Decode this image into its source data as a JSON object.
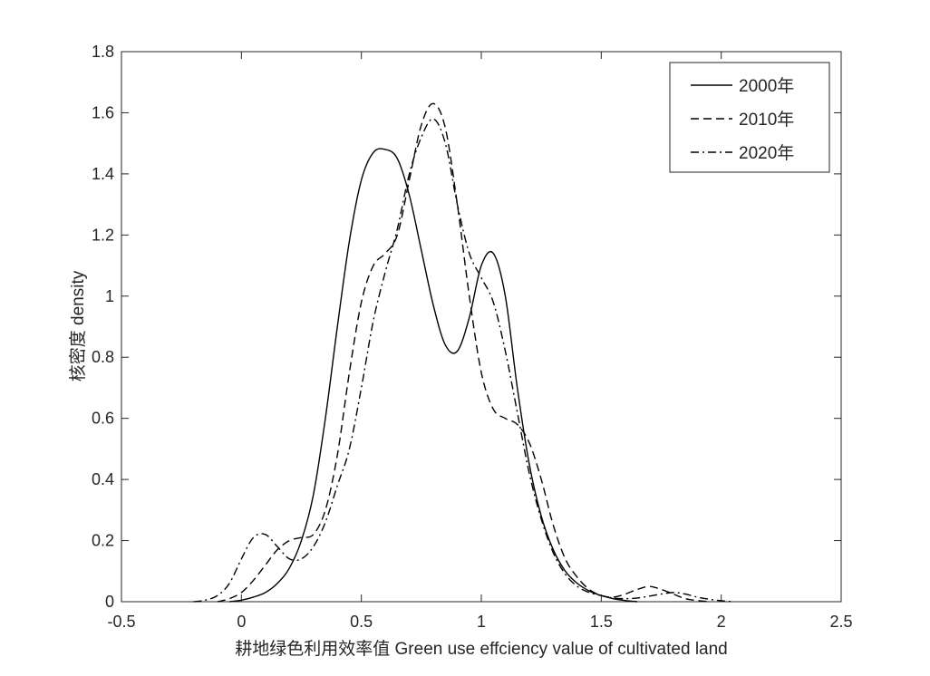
{
  "chart_data": {
    "type": "line",
    "title": "",
    "xlabel": "耕地绿色利用效率值 Green use effciency value of cultivated land",
    "ylabel": "核密度 density",
    "xlim": [
      -0.5,
      2.5
    ],
    "ylim": [
      0,
      1.8
    ],
    "xticks": [
      -0.5,
      0,
      0.5,
      1,
      1.5,
      2,
      2.5
    ],
    "yticks": [
      0,
      0.2,
      0.4,
      0.6,
      0.8,
      1,
      1.2,
      1.4,
      1.6,
      1.8
    ],
    "xtick_labels": [
      "-0.5",
      "0",
      "0.5",
      "1",
      "1.5",
      "2",
      "2.5"
    ],
    "ytick_labels": [
      "0",
      "0.2",
      "0.4",
      "0.6",
      "0.8",
      "1",
      "1.2",
      "1.4",
      "1.6",
      "1.8"
    ],
    "grid": false,
    "legend_position": "top-right",
    "series": [
      {
        "name": "2000年",
        "color": "#000000",
        "dash": "solid",
        "x": [
          -0.05,
          0.0,
          0.05,
          0.1,
          0.15,
          0.2,
          0.25,
          0.3,
          0.35,
          0.4,
          0.45,
          0.5,
          0.55,
          0.6,
          0.65,
          0.7,
          0.75,
          0.8,
          0.85,
          0.9,
          0.95,
          1.0,
          1.05,
          1.1,
          1.15,
          1.2,
          1.25,
          1.3,
          1.35,
          1.4,
          1.45,
          1.5,
          1.55,
          1.6,
          1.65
        ],
        "y": [
          0.0,
          0.005,
          0.015,
          0.03,
          0.06,
          0.11,
          0.2,
          0.35,
          0.6,
          0.9,
          1.18,
          1.38,
          1.47,
          1.48,
          1.45,
          1.33,
          1.15,
          0.97,
          0.84,
          0.82,
          0.93,
          1.1,
          1.14,
          1.0,
          0.7,
          0.45,
          0.28,
          0.17,
          0.1,
          0.06,
          0.035,
          0.02,
          0.01,
          0.004,
          0.0
        ]
      },
      {
        "name": "2010年",
        "color": "#000000",
        "dash": "dashed",
        "x": [
          -0.1,
          -0.05,
          0.0,
          0.05,
          0.1,
          0.15,
          0.2,
          0.25,
          0.3,
          0.35,
          0.4,
          0.45,
          0.5,
          0.55,
          0.6,
          0.65,
          0.7,
          0.75,
          0.8,
          0.85,
          0.9,
          0.95,
          1.0,
          1.05,
          1.1,
          1.15,
          1.2,
          1.25,
          1.3,
          1.35,
          1.4,
          1.45,
          1.5,
          1.55,
          1.6,
          1.65,
          1.7,
          1.75,
          1.8,
          1.85,
          1.9,
          1.95
        ],
        "y": [
          0.0,
          0.01,
          0.03,
          0.07,
          0.12,
          0.17,
          0.2,
          0.21,
          0.22,
          0.3,
          0.48,
          0.75,
          0.98,
          1.1,
          1.14,
          1.2,
          1.38,
          1.56,
          1.63,
          1.55,
          1.3,
          1.0,
          0.75,
          0.63,
          0.6,
          0.58,
          0.52,
          0.4,
          0.25,
          0.14,
          0.08,
          0.04,
          0.02,
          0.015,
          0.025,
          0.04,
          0.05,
          0.04,
          0.025,
          0.01,
          0.004,
          0.0
        ]
      },
      {
        "name": "2020年",
        "color": "#000000",
        "dash": "dashdot",
        "x": [
          -0.2,
          -0.15,
          -0.1,
          -0.05,
          0.0,
          0.05,
          0.1,
          0.15,
          0.2,
          0.25,
          0.3,
          0.35,
          0.4,
          0.45,
          0.5,
          0.55,
          0.6,
          0.65,
          0.7,
          0.75,
          0.8,
          0.85,
          0.9,
          0.95,
          1.0,
          1.05,
          1.1,
          1.15,
          1.2,
          1.25,
          1.3,
          1.35,
          1.4,
          1.45,
          1.5,
          1.55,
          1.6,
          1.65,
          1.7,
          1.75,
          1.8,
          1.85,
          1.9,
          1.95,
          2.0,
          2.05
        ],
        "y": [
          0.0,
          0.005,
          0.02,
          0.06,
          0.14,
          0.21,
          0.22,
          0.18,
          0.14,
          0.14,
          0.18,
          0.26,
          0.38,
          0.5,
          0.7,
          0.92,
          1.08,
          1.22,
          1.4,
          1.52,
          1.58,
          1.5,
          1.3,
          1.14,
          1.06,
          0.98,
          0.82,
          0.62,
          0.42,
          0.27,
          0.16,
          0.09,
          0.05,
          0.03,
          0.02,
          0.012,
          0.01,
          0.012,
          0.018,
          0.025,
          0.03,
          0.025,
          0.015,
          0.008,
          0.003,
          0.0
        ]
      }
    ]
  }
}
